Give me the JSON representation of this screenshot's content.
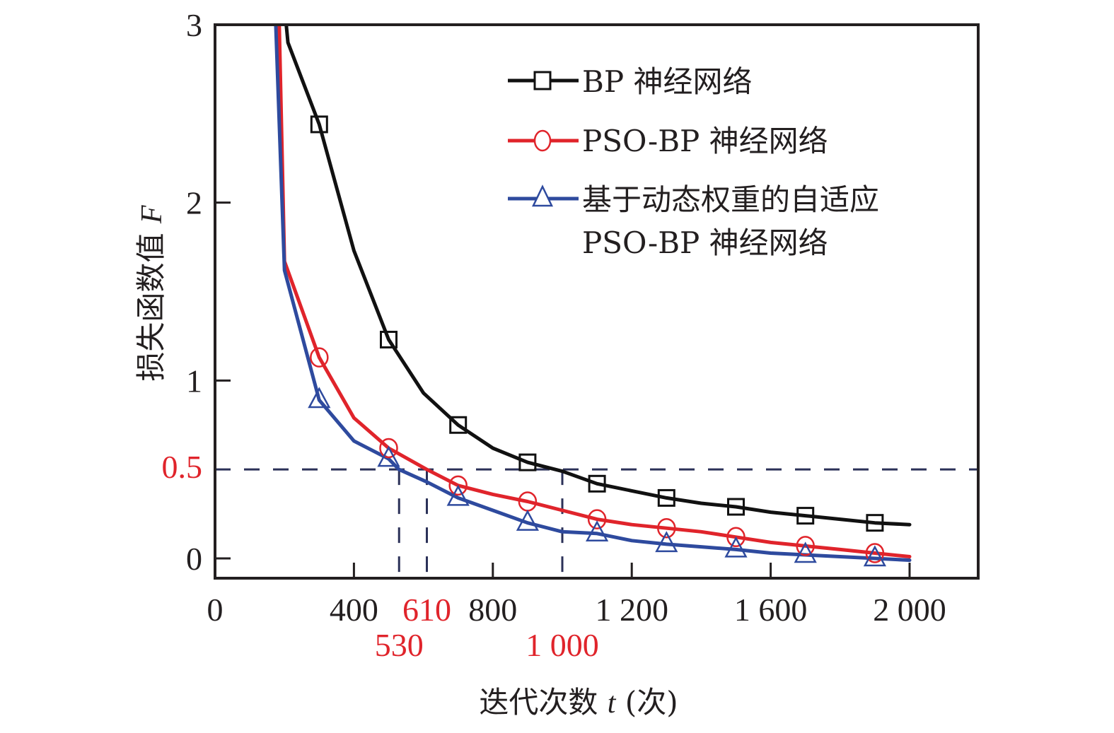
{
  "chart_data": {
    "type": "line",
    "title": "",
    "xlabel": "迭代次数 t (次)",
    "xlabel_parts": [
      "迭代次数 ",
      "t",
      " (次)"
    ],
    "ylabel": "损失函数值 F",
    "ylabel_parts": [
      "损失函数值 ",
      "F"
    ],
    "xlim": [
      0,
      2200
    ],
    "ylim": [
      -0.1,
      3
    ],
    "x_ticks": [
      {
        "value": 0,
        "label": "0"
      },
      {
        "value": 400,
        "label": "400"
      },
      {
        "value": 800,
        "label": "800"
      },
      {
        "value": 1200,
        "label": "1 200"
      },
      {
        "value": 1600,
        "label": "1 600"
      },
      {
        "value": 2000,
        "label": "2 000"
      }
    ],
    "y_ticks": [
      {
        "value": 0,
        "label": "0"
      },
      {
        "value": 1,
        "label": "1"
      },
      {
        "value": 2,
        "label": "2"
      },
      {
        "value": 3,
        "label": "3"
      }
    ],
    "grid": false,
    "legend_position": "top-right",
    "reference_lines": {
      "threshold": {
        "value": 0.5,
        "label": "0.5",
        "color": "#e0242b"
      },
      "crossings": [
        {
          "x": 530,
          "label": "530",
          "row": 2
        },
        {
          "x": 610,
          "label": "610",
          "row": 1
        },
        {
          "x": 1000,
          "label": "1 000",
          "row": 2
        }
      ],
      "line_color": "#2b3158"
    },
    "series": [
      {
        "name": "BP 神经网络",
        "color": "#111111",
        "marker": "square",
        "x": [
          205,
          210,
          300,
          400,
          500,
          600,
          700,
          800,
          900,
          1000,
          1100,
          1200,
          1300,
          1400,
          1500,
          1600,
          1700,
          1800,
          1900,
          2000
        ],
        "y": [
          3.0,
          2.9,
          2.44,
          1.73,
          1.23,
          0.93,
          0.75,
          0.62,
          0.54,
          0.49,
          0.42,
          0.38,
          0.34,
          0.31,
          0.29,
          0.26,
          0.24,
          0.22,
          0.2,
          0.19
        ],
        "marker_x": [
          300,
          500,
          700,
          900,
          1100,
          1300,
          1500,
          1700,
          1900
        ]
      },
      {
        "name": "PSO-BP 神经网络",
        "color": "#e0242b",
        "marker": "circle",
        "x": [
          185,
          200,
          300,
          400,
          500,
          610,
          700,
          800,
          900,
          1000,
          1100,
          1200,
          1300,
          1400,
          1500,
          1600,
          1700,
          1800,
          1900,
          2000
        ],
        "y": [
          3.0,
          1.67,
          1.13,
          0.79,
          0.62,
          0.5,
          0.41,
          0.36,
          0.32,
          0.27,
          0.22,
          0.19,
          0.17,
          0.15,
          0.12,
          0.09,
          0.07,
          0.05,
          0.03,
          0.01
        ],
        "marker_x": [
          300,
          500,
          700,
          900,
          1100,
          1300,
          1500,
          1700,
          1900
        ]
      },
      {
        "name": "基于动态权重的自适应 PSO-BP 神经网络",
        "name_lines": [
          "基于动态权重的自适应",
          "PSO-BP 神经网络"
        ],
        "color": "#2e4a9e",
        "marker": "triangle",
        "x": [
          175,
          200,
          300,
          400,
          500,
          530,
          610,
          700,
          800,
          900,
          1000,
          1100,
          1200,
          1300,
          1400,
          1500,
          1600,
          1700,
          1800,
          1900,
          2000
        ],
        "y": [
          3.0,
          1.62,
          0.89,
          0.66,
          0.56,
          0.5,
          0.43,
          0.34,
          0.27,
          0.2,
          0.15,
          0.14,
          0.1,
          0.08,
          0.065,
          0.05,
          0.03,
          0.02,
          0.01,
          0.0,
          -0.01
        ],
        "marker_x": [
          300,
          500,
          700,
          900,
          1100,
          1300,
          1500,
          1700,
          1900
        ]
      }
    ]
  }
}
